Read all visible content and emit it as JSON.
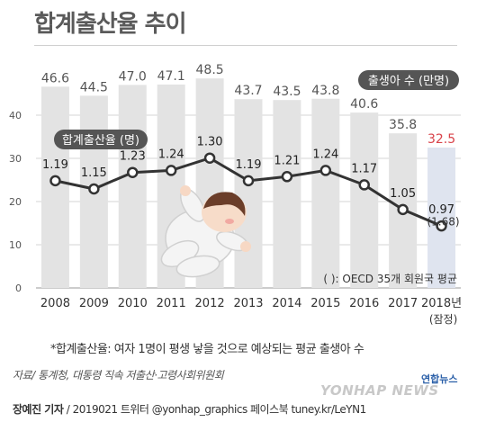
{
  "title": "합계출산율 추이",
  "footnote": "*합계출산율: 여자 1명이 평생 낳을 것으로 예상되는 평균 출생아 수",
  "source": "자료/ 통계청, 대통령 직속 저출산·고령사회위원회",
  "credit": {
    "reporter": "장예진 기자",
    "rest": " / 2019021 트위터 @yonhap_graphics  페이스북 tuney.kr/LeYN1"
  },
  "logo": {
    "brand": "YONHAP NEWS",
    "korean": "연합뉴스"
  },
  "chart_data": {
    "type": "bar+line",
    "categories": [
      "2008",
      "2009",
      "2010",
      "2011",
      "2012",
      "2013",
      "2014",
      "2015",
      "2016",
      "2017",
      "2018년"
    ],
    "category_sublabels": [
      "",
      "",
      "",
      "",
      "",
      "",
      "",
      "",
      "",
      "",
      "(잠정)"
    ],
    "series": [
      {
        "name": "출생아 수 (만명)",
        "type": "bar",
        "values": [
          46.6,
          44.5,
          47.0,
          47.1,
          48.5,
          43.7,
          43.5,
          43.8,
          40.6,
          35.8,
          32.5
        ],
        "labels": [
          "46.6",
          "44.5",
          "47.0",
          "47.1",
          "48.5",
          "43.7",
          "43.5",
          "43.8",
          "40.6",
          "35.8",
          "32.5"
        ],
        "color": "#e3e3e3",
        "highlight_color": "#dfe4ef",
        "label_color": "#555555",
        "last_label_color": "#d9434a"
      },
      {
        "name": "합계출산율 (명)",
        "type": "line",
        "values": [
          1.19,
          1.15,
          1.23,
          1.24,
          1.3,
          1.19,
          1.21,
          1.24,
          1.17,
          1.05,
          0.97
        ],
        "labels": [
          "1.19",
          "1.15",
          "1.23",
          "1.24",
          "1.30",
          "1.19",
          "1.21",
          "1.24",
          "1.17",
          "1.05",
          "0.97"
        ],
        "color": "#333333"
      }
    ],
    "last_point_note": "(1.68)",
    "oecd_note": "(   ): OECD 35개 회원국 평균",
    "yticks": [
      0,
      10,
      20,
      30,
      40
    ],
    "ylim": [
      0,
      50
    ],
    "grid": true,
    "legend": {
      "bar": "출생아 수 (만명)",
      "line": "합계출산율 (명)"
    }
  }
}
